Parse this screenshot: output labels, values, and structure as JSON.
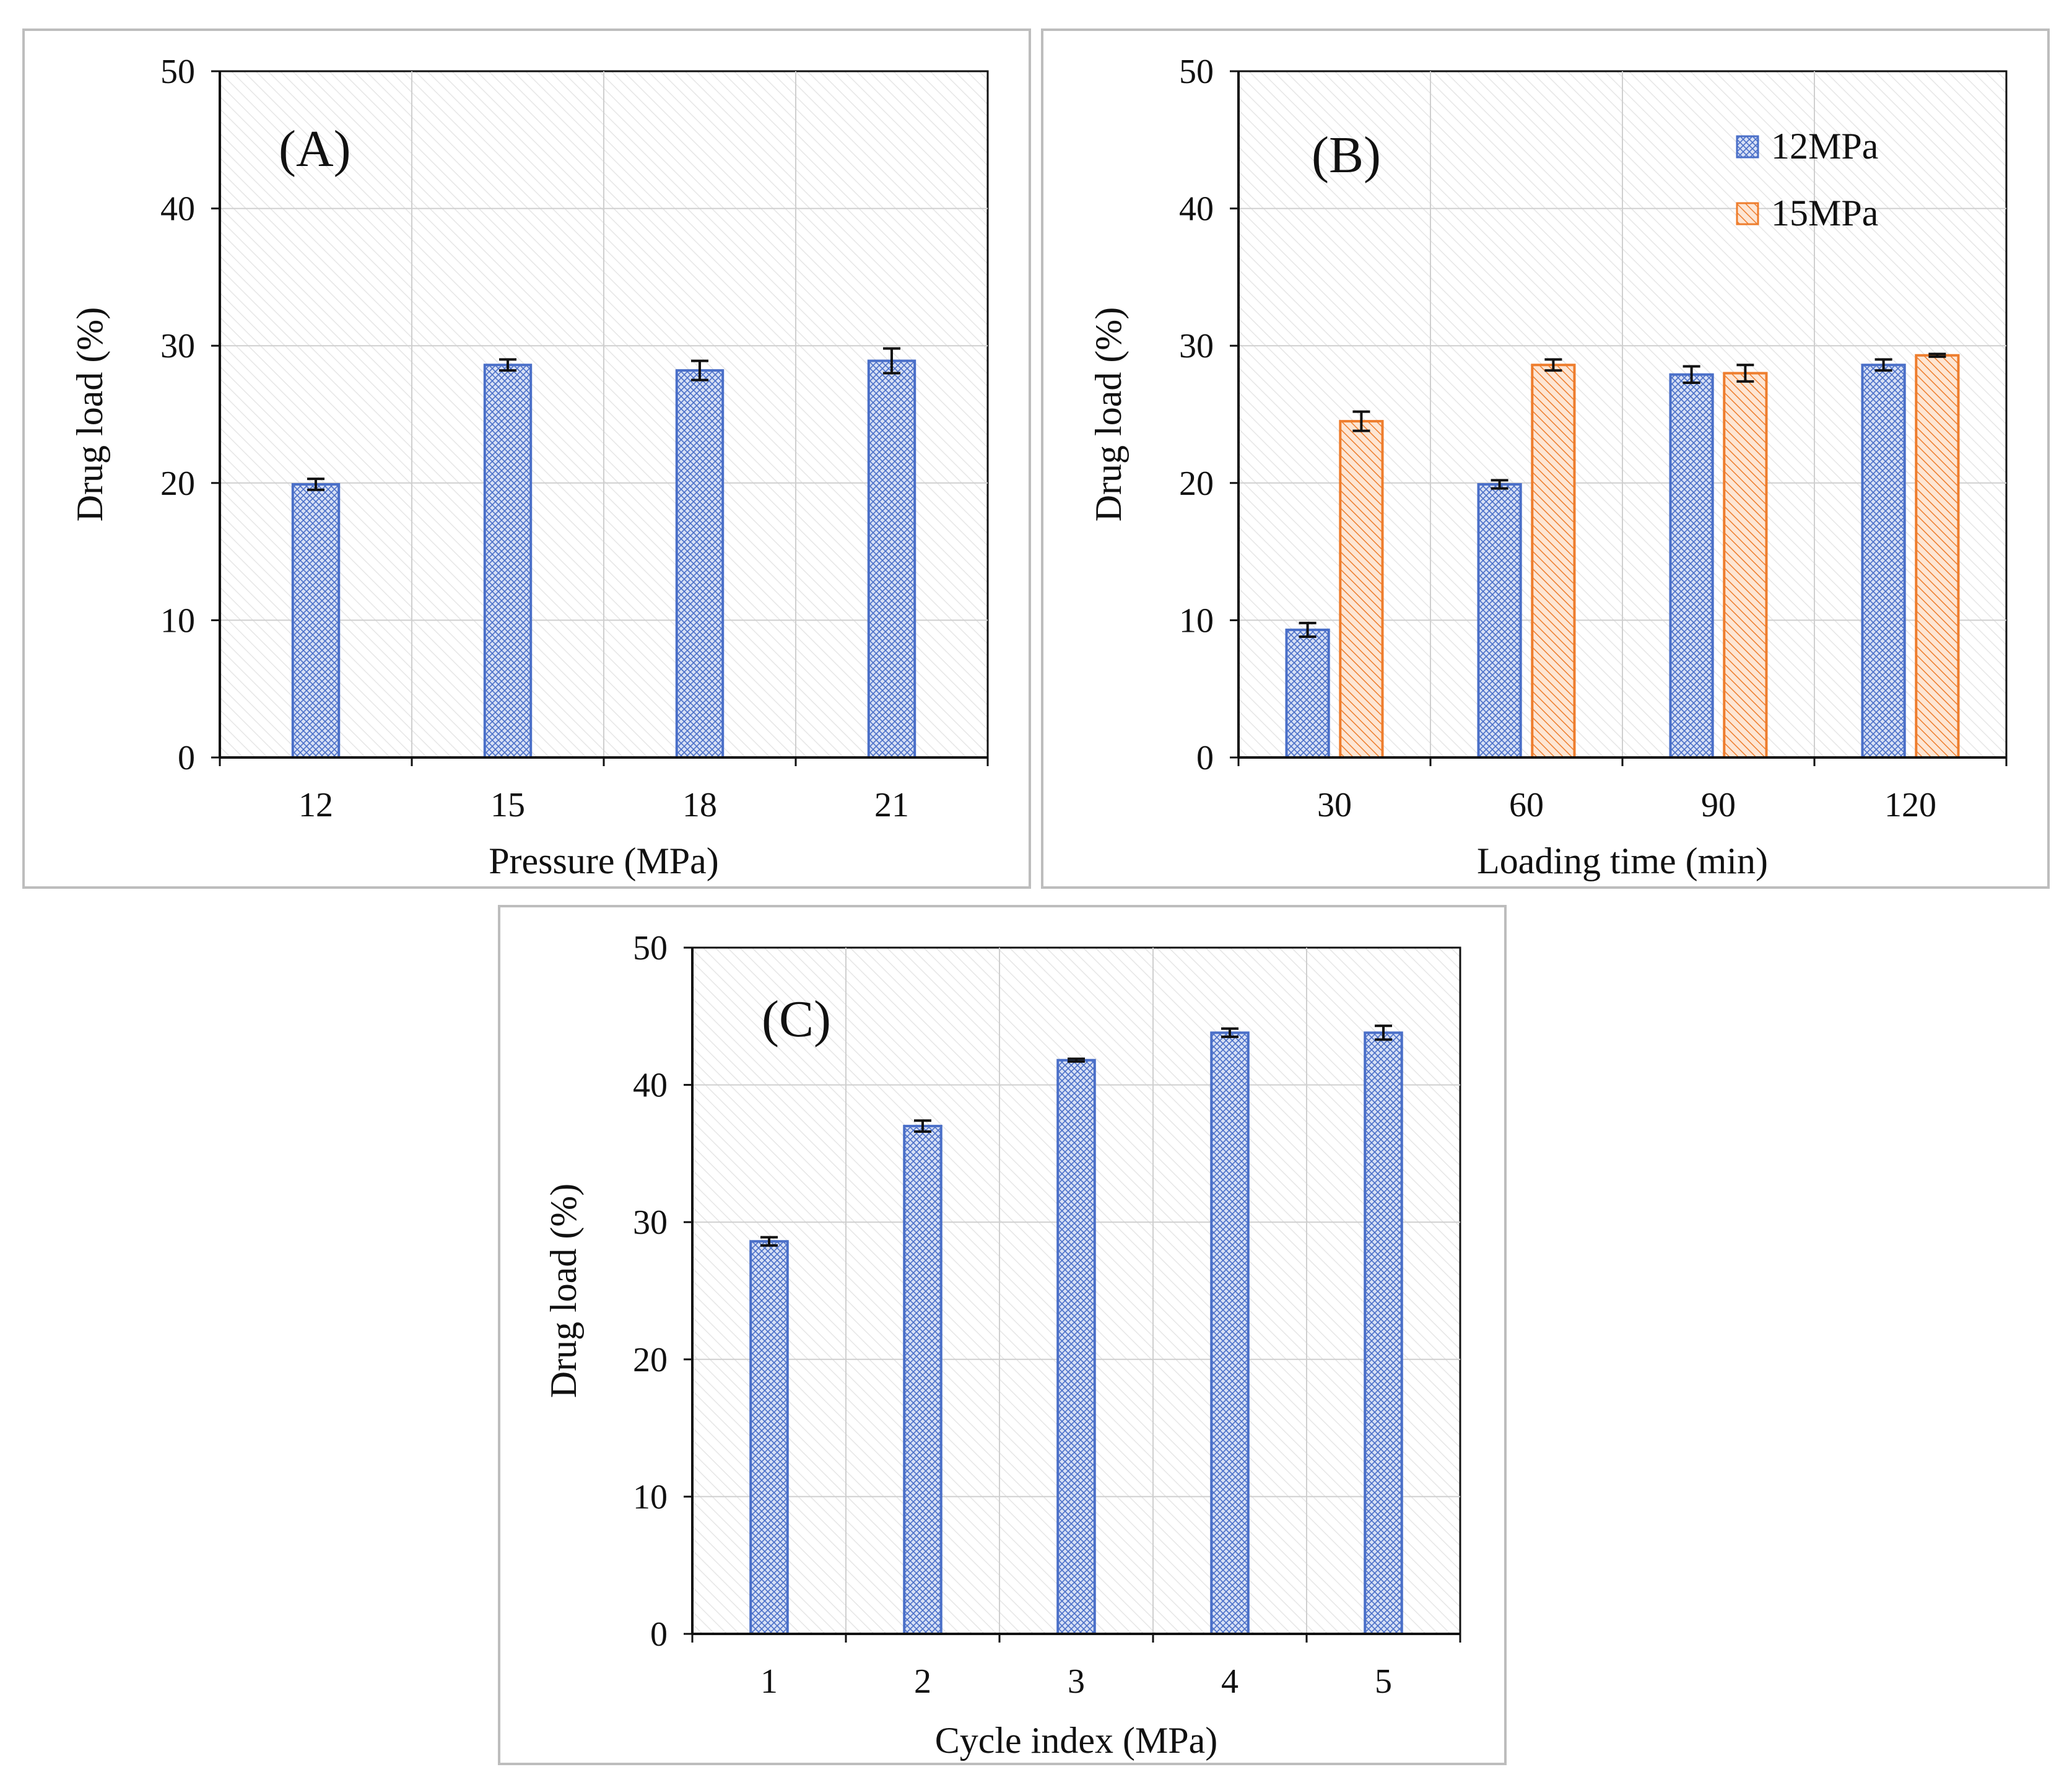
{
  "colors": {
    "blue": "#4a6fc8",
    "orange": "#ee7d2d",
    "axis": "#111111",
    "grid": "#cfcfcf",
    "frame": "#bdbdbd"
  },
  "chart_data": [
    {
      "id": "A",
      "type": "bar",
      "panel_label": "(A)",
      "xlabel": "Pressure (MPa)",
      "ylabel": "Drug load (%)",
      "ylim": [
        0,
        50
      ],
      "yticks": [
        0,
        10,
        20,
        30,
        40,
        50
      ],
      "categories": [
        "12",
        "15",
        "18",
        "21"
      ],
      "series": [
        {
          "name": "12MPa",
          "pattern": "blue",
          "values": [
            19.9,
            28.6,
            28.2,
            28.9
          ],
          "errors": [
            0.4,
            0.4,
            0.7,
            0.9
          ]
        }
      ],
      "legend": false
    },
    {
      "id": "B",
      "type": "bar",
      "panel_label": "(B)",
      "xlabel": "Loading time (min)",
      "ylabel": "Drug load (%)",
      "ylim": [
        0,
        50
      ],
      "yticks": [
        0,
        10,
        20,
        30,
        40,
        50
      ],
      "categories": [
        "30",
        "60",
        "90",
        "120"
      ],
      "series": [
        {
          "name": "12MPa",
          "pattern": "blue",
          "values": [
            9.3,
            19.9,
            27.9,
            28.6
          ],
          "errors": [
            0.5,
            0.3,
            0.6,
            0.4
          ]
        },
        {
          "name": "15MPa",
          "pattern": "orange",
          "values": [
            24.5,
            28.6,
            28.0,
            29.3
          ],
          "errors": [
            0.7,
            0.4,
            0.6,
            0.1
          ]
        }
      ],
      "legend": true,
      "legend_position": "top-right"
    },
    {
      "id": "C",
      "type": "bar",
      "panel_label": "(C)",
      "xlabel": "Cycle index (MPa)",
      "ylabel": "Drug load (%)",
      "ylim": [
        0,
        50
      ],
      "yticks": [
        0,
        10,
        20,
        30,
        40,
        50
      ],
      "categories": [
        "1",
        "2",
        "3",
        "4",
        "5"
      ],
      "series": [
        {
          "name": "12MPa",
          "pattern": "blue",
          "values": [
            28.6,
            37.0,
            41.8,
            43.8,
            43.8
          ],
          "errors": [
            0.3,
            0.4,
            0.1,
            0.3,
            0.5
          ]
        }
      ],
      "legend": false
    }
  ]
}
